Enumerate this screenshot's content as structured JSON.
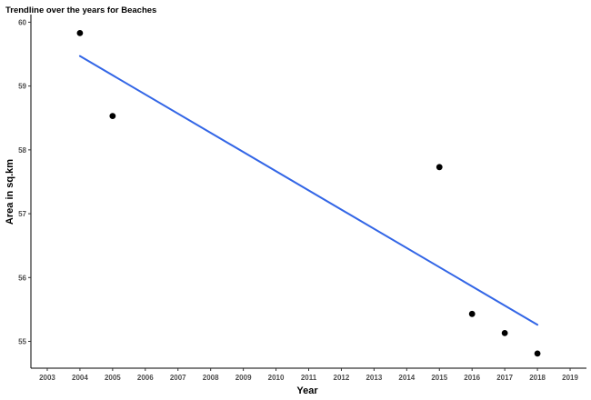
{
  "chart_data": {
    "type": "scatter",
    "title": "Trendline over the years for Beaches",
    "xlabel": "Year",
    "ylabel": "Area in sq.km",
    "xlim": [
      2002.5,
      2019.5
    ],
    "ylim": [
      54.58,
      60.12
    ],
    "x_ticks": [
      2003,
      2004,
      2005,
      2006,
      2007,
      2008,
      2009,
      2010,
      2011,
      2012,
      2013,
      2014,
      2015,
      2016,
      2017,
      2018,
      2019
    ],
    "y_ticks": [
      55,
      56,
      57,
      58,
      59,
      60
    ],
    "grid": false,
    "series": [
      {
        "kind": "points",
        "color": "#000000",
        "x": [
          2004,
          2005,
          2015,
          2016,
          2017,
          2018
        ],
        "y": [
          59.83,
          58.53,
          57.73,
          55.43,
          55.13,
          54.81
        ]
      },
      {
        "kind": "trendline",
        "color": "#3366e6",
        "x": [
          2004,
          2018
        ],
        "y": [
          59.47,
          55.26
        ]
      }
    ]
  }
}
